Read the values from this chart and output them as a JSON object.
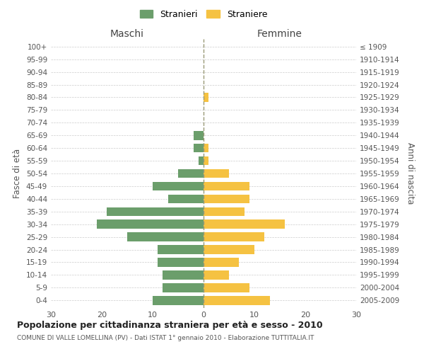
{
  "age_groups": [
    "0-4",
    "5-9",
    "10-14",
    "15-19",
    "20-24",
    "25-29",
    "30-34",
    "35-39",
    "40-44",
    "45-49",
    "50-54",
    "55-59",
    "60-64",
    "65-69",
    "70-74",
    "75-79",
    "80-84",
    "85-89",
    "90-94",
    "95-99",
    "100+"
  ],
  "birth_years": [
    "2005-2009",
    "2000-2004",
    "1995-1999",
    "1990-1994",
    "1985-1989",
    "1980-1984",
    "1975-1979",
    "1970-1974",
    "1965-1969",
    "1960-1964",
    "1955-1959",
    "1950-1954",
    "1945-1949",
    "1940-1944",
    "1935-1939",
    "1930-1934",
    "1925-1929",
    "1920-1924",
    "1915-1919",
    "1910-1914",
    "≤ 1909"
  ],
  "maschi": [
    10,
    8,
    8,
    9,
    9,
    15,
    21,
    19,
    7,
    10,
    5,
    1,
    2,
    2,
    0,
    0,
    0,
    0,
    0,
    0,
    0
  ],
  "femmine": [
    13,
    9,
    5,
    7,
    10,
    12,
    16,
    8,
    9,
    9,
    5,
    1,
    1,
    0,
    0,
    0,
    1,
    0,
    0,
    0,
    0
  ],
  "color_maschi": "#6b9e6b",
  "color_femmine": "#f5c242",
  "title": "Popolazione per cittadinanza straniera per età e sesso - 2010",
  "subtitle": "COMUNE DI VALLE LOMELLINA (PV) - Dati ISTAT 1° gennaio 2010 - Elaborazione TUTTITALIA.IT",
  "xlabel_left": "Maschi",
  "xlabel_right": "Femmine",
  "ylabel_left": "Fasce di età",
  "ylabel_right": "Anni di nascita",
  "legend_maschi": "Stranieri",
  "legend_femmine": "Straniere",
  "xlim": 30,
  "background_color": "#ffffff",
  "grid_color": "#cccccc"
}
